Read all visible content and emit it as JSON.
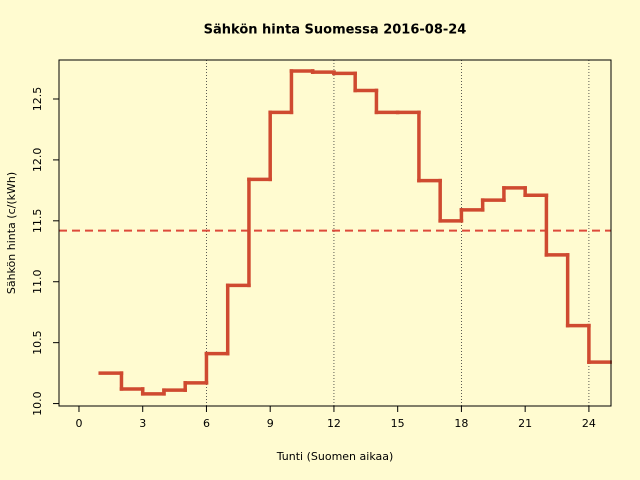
{
  "chart_data": {
    "type": "step",
    "title": "Sähkön hinta Suomessa 2016-08-24",
    "xlabel": "Tunti (Suomen aikaa)",
    "ylabel": "Sähkön hinta (c/(kWh)",
    "x": [
      1,
      2,
      3,
      4,
      5,
      6,
      7,
      8,
      9,
      10,
      11,
      12,
      13,
      14,
      15,
      16,
      17,
      18,
      19,
      20,
      21,
      22,
      23,
      24
    ],
    "series": [
      {
        "color": "#cf4a30",
        "values": [
          10.25,
          10.12,
          10.08,
          10.11,
          10.17,
          10.41,
          10.97,
          11.84,
          12.39,
          12.73,
          12.72,
          12.71,
          12.57,
          12.39,
          12.39,
          11.83,
          11.5,
          11.59,
          11.67,
          11.77,
          11.71,
          11.22,
          10.64,
          10.34
        ]
      }
    ],
    "mean_line": {
      "value": 11.42,
      "color": "#dd4a3a"
    },
    "vlines": [
      6,
      12,
      18,
      24
    ],
    "xlim": [
      -0.94,
      25.04
    ],
    "ylim": [
      9.98,
      12.82
    ],
    "xticks": [
      0,
      3,
      6,
      9,
      12,
      15,
      18,
      21,
      24
    ],
    "yticks": [
      {
        "value": 10,
        "label": "10.0"
      },
      10.5,
      {
        "value": 11,
        "label": "11.0"
      },
      11.5,
      {
        "value": 12,
        "label": "12.0"
      },
      12.5
    ]
  }
}
